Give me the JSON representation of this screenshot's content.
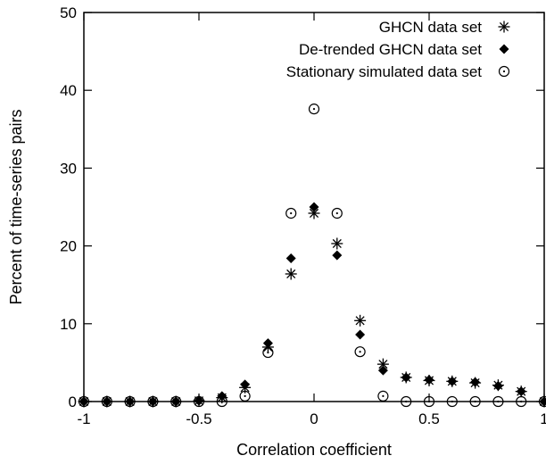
{
  "chart_data": {
    "type": "scatter",
    "title": "",
    "xlabel": "Correlation coefficient",
    "ylabel": "Percent of time-series pairs",
    "xlim": [
      -1,
      1
    ],
    "ylim": [
      0,
      50
    ],
    "x_ticks": [
      -1,
      -0.5,
      0,
      0.5,
      1
    ],
    "x_tick_labels": [
      "-1",
      "-0.5",
      "0",
      "0.5",
      "1"
    ],
    "y_ticks": [
      0,
      10,
      20,
      30,
      40,
      50
    ],
    "y_tick_labels": [
      "0",
      "10",
      "20",
      "30",
      "40",
      "50"
    ],
    "grid": false,
    "legend_position": "top-right",
    "series": [
      {
        "name": "GHCN data set",
        "marker": "asterisk",
        "color": "#000000",
        "x": [
          -1,
          -0.9,
          -0.8,
          -0.7,
          -0.6,
          -0.5,
          -0.4,
          -0.3,
          -0.2,
          -0.1,
          0,
          0.1,
          0.2,
          0.3,
          0.4,
          0.5,
          0.6,
          0.7,
          0.8,
          0.9,
          1
        ],
        "y": [
          0,
          0,
          0,
          0,
          0,
          0.1,
          0.5,
          1.8,
          7.0,
          16.4,
          24.2,
          20.3,
          10.4,
          4.8,
          3.1,
          2.7,
          2.6,
          2.4,
          2.1,
          1.3,
          0
        ]
      },
      {
        "name": "De-trended GHCN data set",
        "marker": "diamond",
        "color": "#000000",
        "x": [
          -1,
          -0.9,
          -0.8,
          -0.7,
          -0.6,
          -0.5,
          -0.4,
          -0.3,
          -0.2,
          -0.1,
          0,
          0.1,
          0.2,
          0.3,
          0.4,
          0.5,
          0.6,
          0.7,
          0.8,
          0.9,
          1
        ],
        "y": [
          0,
          0,
          0,
          0,
          0,
          0.1,
          0.7,
          2.2,
          7.5,
          18.4,
          25.0,
          18.8,
          8.6,
          4.0,
          3.1,
          2.8,
          2.6,
          2.5,
          2.0,
          1.3,
          0
        ]
      },
      {
        "name": "Stationary simulated data set",
        "marker": "circle-dot",
        "color": "#000000",
        "x": [
          -1,
          -0.9,
          -0.8,
          -0.7,
          -0.6,
          -0.5,
          -0.4,
          -0.3,
          -0.2,
          -0.1,
          0,
          0.1,
          0.2,
          0.3,
          0.4,
          0.5,
          0.6,
          0.7,
          0.8,
          0.9,
          1
        ],
        "y": [
          0,
          0,
          0,
          0,
          0,
          0,
          0,
          0.7,
          6.3,
          24.2,
          37.6,
          24.2,
          6.4,
          0.7,
          0,
          0,
          0,
          0,
          0,
          0,
          0
        ]
      }
    ]
  }
}
